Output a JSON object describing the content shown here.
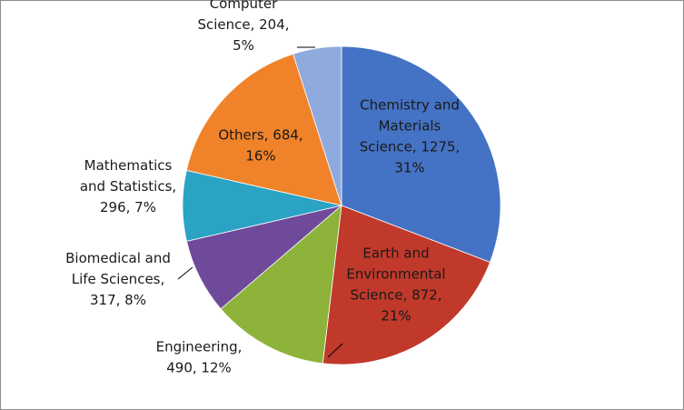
{
  "chart_data": {
    "type": "pie",
    "title": "",
    "legend": "none",
    "slices": [
      {
        "label": "Chemistry and Materials Science",
        "value": 1275,
        "percent": "31%",
        "color": "#4472c4",
        "label_lines": [
          "Chemistry and",
          "Materials",
          "Science, 1275,",
          "31%"
        ]
      },
      {
        "label": "Earth and Environmental Science",
        "value": 872,
        "percent": "21%",
        "color": "#c0392b",
        "label_lines": [
          "Earth and",
          "Environmental",
          "Science, 872,",
          "21%"
        ]
      },
      {
        "label": "Engineering",
        "value": 490,
        "percent": "12%",
        "color": "#8db33a",
        "label_lines": [
          "Engineering,",
          "490, 12%"
        ]
      },
      {
        "label": "Biomedical and Life Sciences",
        "value": 317,
        "percent": "8%",
        "color": "#6f4a9a",
        "label_lines": [
          "Biomedical and",
          "Life Sciences,",
          "317, 8%"
        ]
      },
      {
        "label": "Mathematics and Statistics",
        "value": 296,
        "percent": "7%",
        "color": "#2aa3c4",
        "label_lines": [
          "Mathematics",
          "and Statistics,",
          "296, 7%"
        ]
      },
      {
        "label": "Others",
        "value": 684,
        "percent": "16%",
        "color": "#f0832a",
        "label_lines": [
          "Others, 684,",
          "16%"
        ]
      },
      {
        "label": "Computer Science",
        "value": 204,
        "percent": "5%",
        "color": "#8faadc",
        "label_lines": [
          "Computer",
          "Science, 204,",
          "5%"
        ]
      }
    ]
  }
}
